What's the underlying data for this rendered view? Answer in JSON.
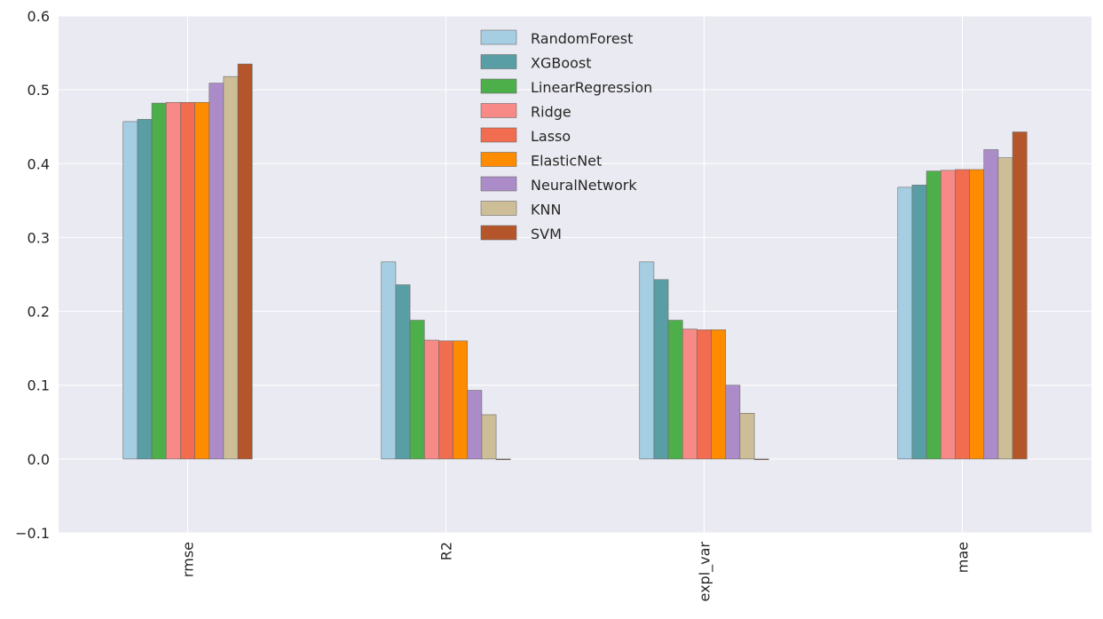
{
  "chart_data": {
    "type": "bar",
    "categories": [
      "rmse",
      "R2",
      "expl_var",
      "mae"
    ],
    "ylim": [
      -0.1,
      0.6
    ],
    "yticks": [
      "−0.1",
      "0.0",
      "0.1",
      "0.2",
      "0.3",
      "0.4",
      "0.5",
      "0.6"
    ],
    "ytick_values": [
      -0.1,
      0.0,
      0.1,
      0.2,
      0.3,
      0.4,
      0.5,
      0.6
    ],
    "grid": true,
    "legend_position": "top-center",
    "background": "#eaeaf2",
    "series": [
      {
        "name": "RandomForest",
        "color": "#a6cee3",
        "values": [
          0.457,
          0.267,
          0.267,
          0.368
        ]
      },
      {
        "name": "XGBoost",
        "color": "#5a9ea5",
        "values": [
          0.46,
          0.236,
          0.243,
          0.371
        ]
      },
      {
        "name": "LinearRegression",
        "color": "#4daf4a",
        "values": [
          0.482,
          0.188,
          0.188,
          0.39
        ]
      },
      {
        "name": "Ridge",
        "color": "#f78a86",
        "values": [
          0.483,
          0.161,
          0.176,
          0.391
        ]
      },
      {
        "name": "Lasso",
        "color": "#f26c4f",
        "values": [
          0.483,
          0.16,
          0.175,
          0.392
        ]
      },
      {
        "name": "ElasticNet",
        "color": "#ff8c00",
        "values": [
          0.483,
          0.16,
          0.175,
          0.392
        ]
      },
      {
        "name": "NeuralNetwork",
        "color": "#ab8cc8",
        "values": [
          0.509,
          0.093,
          0.1,
          0.419
        ]
      },
      {
        "name": "KNN",
        "color": "#cdbe98",
        "values": [
          0.518,
          0.06,
          0.062,
          0.408
        ]
      },
      {
        "name": "SVM",
        "color": "#b5562a",
        "values": [
          0.535,
          -0.001,
          0.0,
          0.443
        ]
      }
    ]
  }
}
